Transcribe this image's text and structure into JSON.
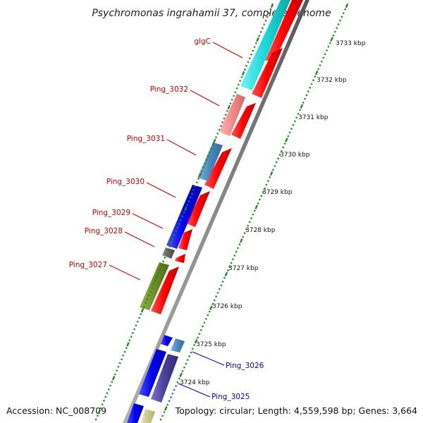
{
  "map": {
    "title": "Psychromonas ingrahamii 37, complete genome",
    "accession": "Accession: NC_008709",
    "topology": "Topology: circular; Length: 4,559,598 bp; Genes: 3,664",
    "colors": {
      "backbone": "#8a8a8a",
      "tick": "#1e8a1e",
      "label_red": "#cc0000",
      "label_blue": "#0000cc"
    },
    "kbp_labels": [
      {
        "kbp": 3733,
        "text": "3733 kbp"
      },
      {
        "kbp": 3732,
        "text": "3732 kbp"
      },
      {
        "kbp": 3731,
        "text": "3731 kbp"
      },
      {
        "kbp": 3730,
        "text": "3730 kbp"
      },
      {
        "kbp": 3729,
        "text": "3729 kbp"
      },
      {
        "kbp": 3728,
        "text": "3728 kbp"
      },
      {
        "kbp": 3727,
        "text": "3727 kbp"
      },
      {
        "kbp": 3726,
        "text": "3726 kbp"
      },
      {
        "kbp": 3725,
        "text": "3725 kbp"
      },
      {
        "kbp": 3724,
        "text": "3724 kbp"
      }
    ],
    "gene_labels": [
      {
        "id": "glgc",
        "text": "glgC",
        "color": "#cc0000"
      },
      {
        "id": "ping-3032",
        "text": "Ping_3032",
        "color": "#cc0000"
      },
      {
        "id": "ping-3031",
        "text": "Ping_3031",
        "color": "#cc0000"
      },
      {
        "id": "ping-3030",
        "text": "Ping_3030",
        "color": "#cc0000"
      },
      {
        "id": "ping-3029",
        "text": "Ping_3029",
        "color": "#cc0000"
      },
      {
        "id": "ping-3028",
        "text": "Ping_3028",
        "color": "#cc0000"
      },
      {
        "id": "ping-3027",
        "text": "Ping_3027",
        "color": "#cc0000"
      },
      {
        "id": "ping-3026",
        "text": "Ping_3026",
        "color": "#0000cc"
      },
      {
        "id": "ping-3025",
        "text": "Ping_3025",
        "color": "#0000cc"
      }
    ]
  }
}
